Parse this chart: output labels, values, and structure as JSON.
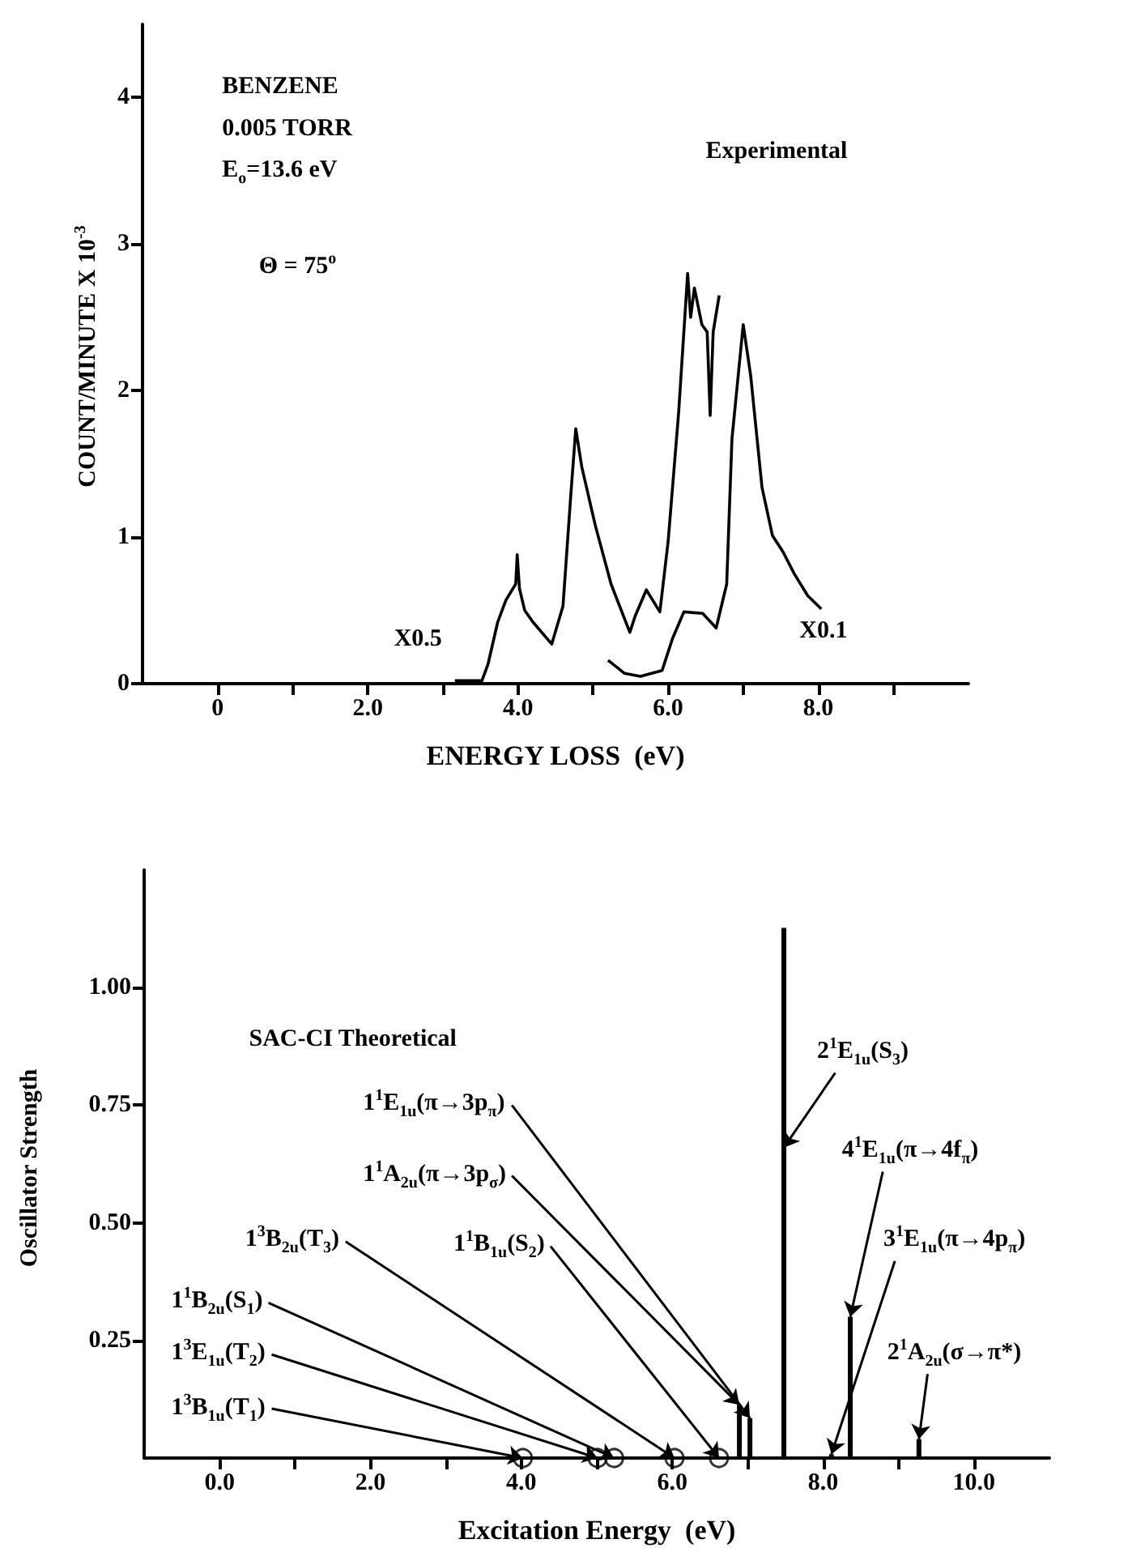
{
  "chart_data": [
    {
      "type": "line",
      "xlabel": "ENERGY LOSS  (eV)",
      "ylabel": "COUNT/MINUTE  X 10$^{-3}$",
      "xlim": [
        -1,
        10
      ],
      "ylim": [
        0,
        4.5
      ],
      "xticks": [
        0,
        {
          "value": 1,
          "label": null
        },
        {
          "value": 2,
          "label": "2.0"
        },
        {
          "value": 3,
          "label": null
        },
        {
          "value": 4,
          "label": "4.0"
        },
        {
          "value": 5,
          "label": null
        },
        {
          "value": 6,
          "label": "6.0"
        },
        {
          "value": 7,
          "label": null
        },
        {
          "value": 8,
          "label": "8.0"
        },
        {
          "value": 9,
          "label": null
        }
      ],
      "yticks": [
        0,
        1,
        2,
        3,
        4
      ],
      "marker": "none",
      "series": [
        {
          "color": "#000000",
          "x": [
            3.16,
            3.52,
            3.6,
            3.73,
            3.84,
            3.97,
            3.99,
            4.02,
            4.09,
            4.2,
            4.45,
            4.6,
            4.7,
            4.77,
            4.85,
            5.03,
            5.24,
            5.49,
            5.56,
            5.71,
            5.89,
            6.0,
            6.14,
            6.26,
            6.3,
            6.35,
            6.45,
            6.52,
            6.56,
            6.6,
            6.68
          ],
          "values": [
            0.02,
            0.02,
            0.13,
            0.42,
            0.57,
            0.68,
            0.88,
            0.65,
            0.5,
            0.42,
            0.27,
            0.53,
            1.26,
            1.74,
            1.48,
            1.08,
            0.68,
            0.35,
            0.46,
            0.64,
            0.49,
            0.97,
            1.85,
            2.8,
            2.5,
            2.7,
            2.45,
            2.4,
            1.83,
            2.4,
            2.65
          ]
        },
        {
          "color": "#000000",
          "x": [
            5.2,
            5.42,
            5.63,
            5.92,
            6.06,
            6.21,
            6.46,
            6.64,
            6.78,
            6.85,
            7.0,
            7.1,
            7.25,
            7.39,
            7.53,
            7.68,
            7.86,
            8.04
          ],
          "values": [
            0.16,
            0.07,
            0.05,
            0.09,
            0.31,
            0.49,
            0.48,
            0.38,
            0.68,
            1.67,
            2.45,
            2.1,
            1.34,
            1.01,
            0.9,
            0.75,
            0.6,
            0.51
          ]
        }
      ],
      "annotations": [
        "BENZENE",
        "0.005 TORR",
        "E$_{o}$=13.6 eV",
        "Θ = 75$^{o}$",
        "Experimental",
        "X0.5",
        "X0.1"
      ]
    },
    {
      "type": "bar",
      "xlabel": "Excitation Energy  (eV)",
      "ylabel": "Oscillator Strength",
      "xlim": [
        -1,
        11
      ],
      "ylim": [
        0,
        1.25
      ],
      "xticks": [
        {
          "value": 0,
          "label": "0.0"
        },
        {
          "value": 1,
          "label": null
        },
        {
          "value": 2,
          "label": "2.0"
        },
        {
          "value": 3,
          "label": null
        },
        {
          "value": 4,
          "label": "4.0"
        },
        {
          "value": 5,
          "label": null
        },
        {
          "value": 6,
          "label": "6.0"
        },
        {
          "value": 7,
          "label": null
        },
        {
          "value": 8,
          "label": "8.0"
        },
        {
          "value": 9,
          "label": null
        },
        {
          "value": 10,
          "label": "10.0"
        }
      ],
      "yticks": [
        0.25,
        {
          "value": 0.5,
          "label": "0.50"
        },
        0.75,
        {
          "value": 1,
          "label": "1.00"
        }
      ],
      "series": [
        {
          "type": "bar",
          "color": "#000000",
          "x": [
            6.89,
            7.03,
            7.48,
            8.11,
            8.36,
            9.27
          ],
          "values": [
            0.113,
            0.085,
            1.127,
            0.008,
            0.3,
            0.04
          ]
        },
        {
          "type": "scatter",
          "marker": "circle",
          "color": "#000000",
          "x": [
            4.02,
            5.01,
            5.23,
            6.03,
            6.62
          ],
          "values": [
            0,
            0,
            0,
            0,
            0
          ]
        }
      ],
      "annotations": [
        {
          "text": "1$^{3}$B$_{1u}$(T$_{1}$)",
          "x": 4.02,
          "y": 0
        },
        {
          "text": "1$^{3}$E$_{1u}$(T$_{2}$)",
          "x": 5.01,
          "y": 0
        },
        {
          "text": "1$^{1}$B$_{2u}$(S$_{1}$)",
          "x": 5.23,
          "y": 0
        },
        {
          "text": "1$^{3}$B$_{2u}$(T$_{3}$)",
          "x": 6.03,
          "y": 0
        },
        {
          "text": "1$^{1}$B$_{1u}$(S$_{2}$)",
          "x": 6.62,
          "y": 0
        },
        {
          "text": "1$^{1}$A$_{2u}$(π→3p$_{σ}$)",
          "x": 6.89,
          "y": 0.113
        },
        {
          "text": "1$^{1}$E$_{1u}$(π→3p$_{π}$)",
          "x": 7.03,
          "y": 0.085
        },
        {
          "text": "2$^{1}$E$_{1u}$(S$_{3}$)",
          "x": 7.48,
          "y": 0.66
        },
        {
          "text": "4$^{1}$E$_{1u}$(π→4f$_{π}$)",
          "x": 8.36,
          "y": 0.3
        },
        {
          "text": "3$^{1}$E$_{1u}$(π→4p$_{π}$)",
          "x": 8.11,
          "y": 0.008
        },
        {
          "text": "2$^{1}$A$_{2u}$(σ→π*)",
          "x": 9.27,
          "y": 0.04
        },
        "SAC-CI Theoretical"
      ]
    }
  ]
}
